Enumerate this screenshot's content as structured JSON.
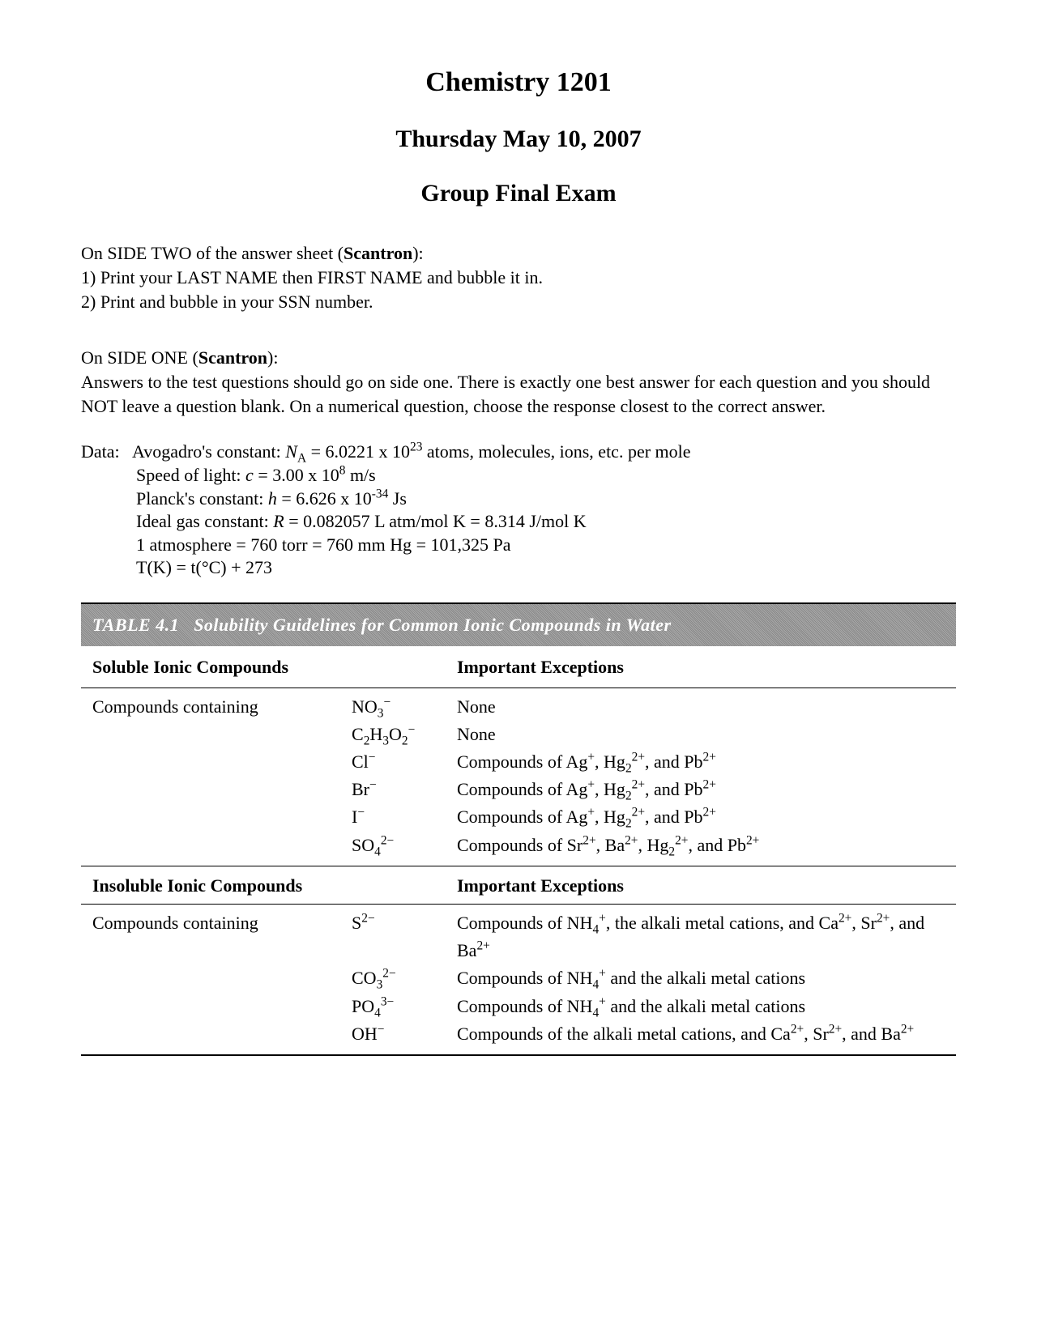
{
  "header": {
    "title": "Chemistry 1201",
    "date": "Thursday May 10, 2007",
    "subtitle": "Group Final Exam"
  },
  "sideTwo": {
    "prefix": "On SIDE TWO of the answer sheet (",
    "bold": "Scantron",
    "suffix": "):",
    "line1": "1) Print your LAST NAME then FIRST NAME and bubble it in.",
    "line2": "2) Print and bubble in your SSN number."
  },
  "sideOne": {
    "prefix": "On SIDE ONE (",
    "bold": "Scantron",
    "suffix": "):",
    "body": "Answers to the test questions should go on side one. There is exactly one best answer for each question and you should NOT leave a question blank. On a numerical question, choose the response closest to the correct answer."
  },
  "data": {
    "label": "Data:",
    "line1_a": "Avogadro's constant: ",
    "line1_na": "N",
    "line1_sub": "A",
    "line1_b": " = 6.0221 x 10",
    "line1_exp": "23",
    "line1_c": " atoms, molecules, ions, etc. per mole",
    "line2_a": "Speed of light: ",
    "line2_c": "c",
    "line2_b": " = 3.00 x 10",
    "line2_exp": "8",
    "line2_d": " m/s",
    "line3_a": "Planck's constant: ",
    "line3_h": "h",
    "line3_b": " = 6.626 x 10",
    "line3_exp": "-34",
    "line3_c": " Js",
    "line4_a": "Ideal gas constant: ",
    "line4_r": "R",
    "line4_b": " = 0.082057 L atm/mol K   =   8.314 J/mol K",
    "line5": "1 atmosphere  = 760 torr = 760 mm Hg = 101,325 Pa",
    "line6": "T(K) = t(°C) + 273"
  },
  "table": {
    "titleLabel": "TABLE 4.1",
    "titleText": "Solubility Guidelines for Common Ionic Compounds in Water",
    "header1a": "Soluble Ionic Compounds",
    "header1b": "Important Exceptions",
    "solubleLead": "Compounds containing",
    "soluble": [
      {
        "ion_html": "NO<sub>3</sub><sup>−</sup>",
        "exc_html": "None"
      },
      {
        "ion_html": "C<sub>2</sub>H<sub>3</sub>O<sub>2</sub><sup>−</sup>",
        "exc_html": "None"
      },
      {
        "ion_html": "Cl<sup>−</sup>",
        "exc_html": "Compounds of Ag<sup>+</sup>, Hg<sub>2</sub><sup>2+</sup>, and Pb<sup>2+</sup>"
      },
      {
        "ion_html": "Br<sup>−</sup>",
        "exc_html": "Compounds of Ag<sup>+</sup>, Hg<sub>2</sub><sup>2+</sup>, and Pb<sup>2+</sup>"
      },
      {
        "ion_html": "I<sup>−</sup>",
        "exc_html": "Compounds of Ag<sup>+</sup>, Hg<sub>2</sub><sup>2+</sup>, and Pb<sup>2+</sup>"
      },
      {
        "ion_html": "SO<sub>4</sub><sup>2−</sup>",
        "exc_html": "Compounds of Sr<sup>2+</sup>, Ba<sup>2+</sup>, Hg<sub>2</sub><sup>2+</sup>, and Pb<sup>2+</sup>"
      }
    ],
    "header2a": "Insoluble Ionic Compounds",
    "header2b": "Important Exceptions",
    "insolubleLead": "Compounds containing",
    "insoluble": [
      {
        "ion_html": "S<sup>2−</sup>",
        "exc_html": "Compounds of NH<sub>4</sub><sup>+</sup>, the alkali metal cations, and Ca<sup>2+</sup>, Sr<sup>2+</sup>, and Ba<sup>2+</sup>"
      },
      {
        "ion_html": "CO<sub>3</sub><sup>2−</sup>",
        "exc_html": "Compounds of NH<sub>4</sub><sup>+</sup> and the alkali metal cations"
      },
      {
        "ion_html": "PO<sub>4</sub><sup>3−</sup>",
        "exc_html": "Compounds of NH<sub>4</sub><sup>+</sup> and the alkali metal cations"
      },
      {
        "ion_html": "OH<sup>−</sup>",
        "exc_html": "Compounds of the alkali metal cations, and Ca<sup>2+</sup>, Sr<sup>2+</sup>, and Ba<sup>2+</sup>"
      }
    ]
  }
}
